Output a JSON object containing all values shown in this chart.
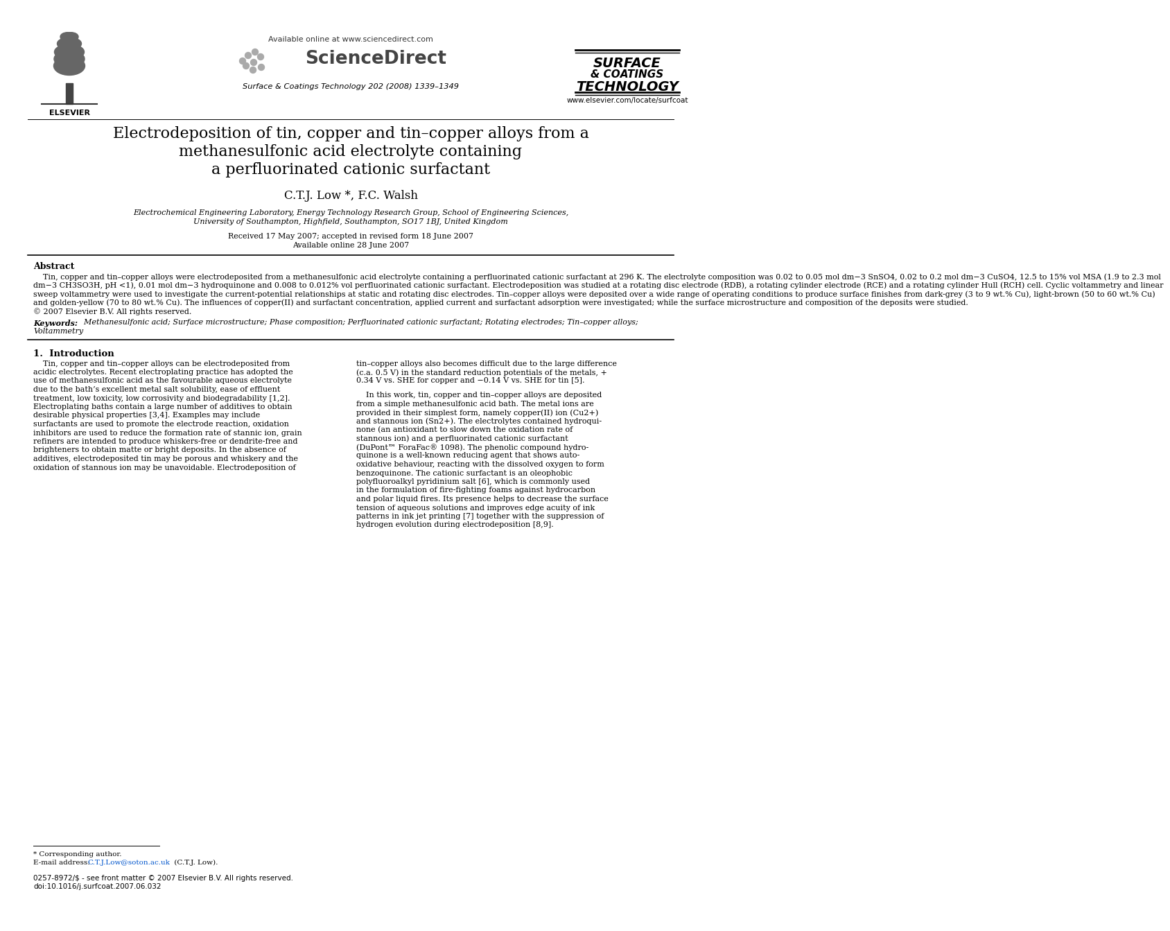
{
  "page_bg": "#ffffff",
  "header_available": "Available online at www.sciencedirect.com",
  "header_sd": "ScienceDirect",
  "header_journal": "Surface & Coatings Technology 202 (2008) 1339–1349",
  "header_elsevier": "ELSEVIER",
  "header_jname1": "SURFACE",
  "header_jname2": "& COATINGS",
  "header_jname3": "TECHNOLOGY",
  "header_website": "www.elsevier.com/locate/surfcoat",
  "title1": "Electrodeposition of tin, copper and tin–copper alloys from a",
  "title2": "methanesulfonic acid electrolyte containing",
  "title3": "a perfluorinated cationic surfactant",
  "authors": "C.T.J. Low *, F.C. Walsh",
  "affil1": "Electrochemical Engineering Laboratory, Energy Technology Research Group, School of Engineering Sciences,",
  "affil2": "University of Southampton, Highfield, Southampton, SO17 1BJ, United Kingdom",
  "received": "Received 17 May 2007; accepted in revised form 18 June 2007",
  "available": "Available online 28 June 2007",
  "abstract_hd": "Abstract",
  "abstract_lines": [
    "    Tin, copper and tin–copper alloys were electrodeposited from a methanesulfonic acid electrolyte containing a perfluorinated cationic surfactant at 296 K. The electrolyte composition was 0.02 to 0.05 mol dm−3 SnSO4, 0.02 to 0.2 mol dm−3 CuSO4, 12.5 to 15% vol MSA (1.9 to 2.3 mol",
    "dm−3 CH3SO3H, pH <1), 0.01 mol dm−3 hydroquinone and 0.008 to 0.012% vol perfluorinated cationic surfactant. Electrodeposition was studied at a rotating disc electrode (RDB), a rotating cylinder electrode (RCE) and a rotating cylinder Hull (RCH) cell. Cyclic voltammetry and linear",
    "sweep voltammetry were used to investigate the current-potential relationships at static and rotating disc electrodes. Tin–copper alloys were deposited over a wide range of operating conditions to produce surface finishes from dark-grey (3 to 9 wt.% Cu), light-brown (50 to 60 wt.% Cu)",
    "and golden-yellow (70 to 80 wt.% Cu). The influences of copper(II) and surfactant concentration, applied current and surfactant adsorption were investigated; while the surface microstructure and composition of the deposits were studied.",
    "© 2007 Elsevier B.V. All rights reserved."
  ],
  "kw_label": "Keywords:",
  "kw_text": "  Methanesulfonic acid; Surface microstructure; Phase composition; Perfluorinated cationic surfactant; Rotating electrodes; Tin–copper alloys;",
  "kw_text2": "Voltammetry",
  "sec1": "1.  Introduction",
  "col1_lines": [
    "    Tin, copper and tin–copper alloys can be electrodeposited from",
    "acidic electrolytes. Recent electroplating practice has adopted the",
    "use of methanesulfonic acid as the favourable aqueous electrolyte",
    "due to the bath’s excellent metal salt solubility, ease of effluent",
    "treatment, low toxicity, low corrosivity and biodegradability [1,2].",
    "Electroplating baths contain a large number of additives to obtain",
    "desirable physical properties [3,4]. Examples may include",
    "surfactants are used to promote the electrode reaction, oxidation",
    "inhibitors are used to reduce the formation rate of stannic ion, grain",
    "refiners are intended to produce whiskers-free or dendrite-free and",
    "brighteners to obtain matte or bright deposits. In the absence of",
    "additives, electrodeposited tin may be porous and whiskery and the",
    "oxidation of stannous ion may be unavoidable. Electrodeposition of"
  ],
  "col2_lines_p1": [
    "tin–copper alloys also becomes difficult due to the large difference",
    "(c.a. 0.5 V) in the standard reduction potentials of the metals, +",
    "0.34 V vs. SHE for copper and −0.14 V vs. SHE for tin [5]."
  ],
  "col2_lines_p2": [
    "    In this work, tin, copper and tin–copper alloys are deposited",
    "from a simple methanesulfonic acid bath. The metal ions are",
    "provided in their simplest form, namely copper(II) ion (Cu2+)",
    "and stannous ion (Sn2+). The electrolytes contained hydroqui-",
    "none (an antioxidant to slow down the oxidation rate of",
    "stannous ion) and a perfluorinated cationic surfactant",
    "(DuPont™ ForaFac® 1098). The phenolic compound hydro-",
    "quinone is a well-known reducing agent that shows auto-",
    "oxidative behaviour, reacting with the dissolved oxygen to form",
    "benzoquinone. The cationic surfactant is an oleophobic",
    "polyfluoroalkyl pyridinium salt [6], which is commonly used",
    "in the formulation of fire-fighting foams against hydrocarbon",
    "and polar liquid fires. Its presence helps to decrease the surface",
    "tension of aqueous solutions and improves edge acuity of ink",
    "patterns in ink jet printing [7] together with the suppression of",
    "hydrogen evolution during electrodeposition [8,9]."
  ],
  "fn_star": "* Corresponding author.",
  "fn_email_lbl": "E-mail address:",
  "fn_email": "C.T.J.Low@soton.ac.uk",
  "fn_email_sfx": " (C.T.J. Low).",
  "footer1": "0257-8972/$ - see front matter © 2007 Elsevier B.V. All rights reserved.",
  "footer2": "doi:10.1016/j.surfcoat.2007.06.032"
}
